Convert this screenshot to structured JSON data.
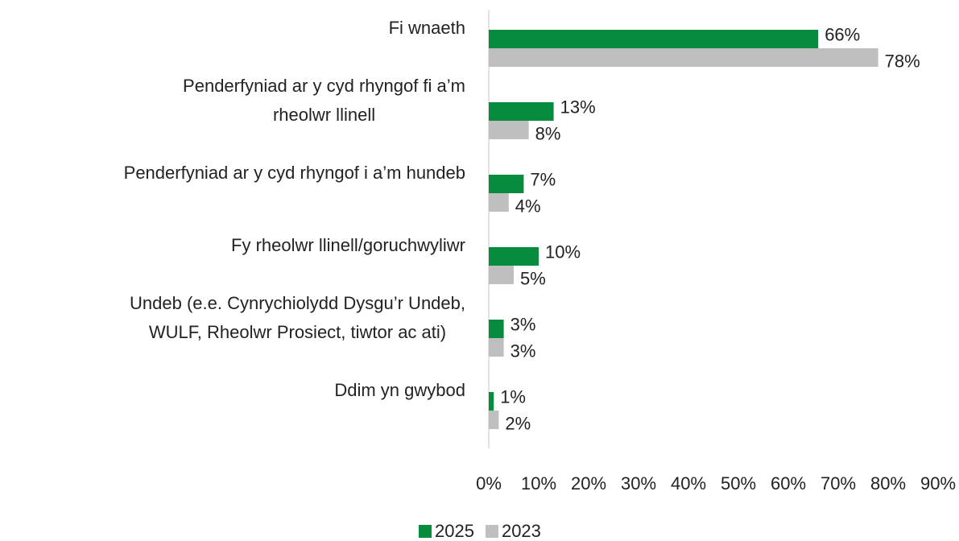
{
  "chart_data": {
    "type": "bar",
    "orientation": "horizontal",
    "categories": [
      "Fi wnaeth",
      "Penderfyniad ar y cyd rhyngof fi a’m\nrheolwr llinell",
      "Penderfyniad ar y cyd rhyngof i a’m hundeb",
      "Fy rheolwr llinell/goruchwyliwr",
      "Undeb (e.e. Cynrychiolydd Dysgu’r Undeb,\nWULF, Rheolwr Prosiect, tiwtor ac ati)",
      "Ddim yn gwybod"
    ],
    "series": [
      {
        "name": "2025",
        "color": "#078b3c",
        "values": [
          66,
          13,
          7,
          10,
          3,
          1
        ],
        "value_labels": [
          "66%",
          "13%",
          "7%",
          "10%",
          "3%",
          "1%"
        ]
      },
      {
        "name": "2023",
        "color": "#bfbfbf",
        "values": [
          78,
          8,
          4,
          5,
          3,
          2
        ],
        "value_labels": [
          "78%",
          "8%",
          "4%",
          "5%",
          "3%",
          "2%"
        ]
      }
    ],
    "xlim": [
      0,
      90
    ],
    "xticks": [
      {
        "value": 0,
        "label": "0%"
      },
      {
        "value": 10,
        "label": "10%"
      },
      {
        "value": 20,
        "label": "20%"
      },
      {
        "value": 30,
        "label": "30%"
      },
      {
        "value": 40,
        "label": "40%"
      },
      {
        "value": 50,
        "label": "50%"
      },
      {
        "value": 60,
        "label": "60%"
      },
      {
        "value": 70,
        "label": "70%"
      },
      {
        "value": 80,
        "label": "80%"
      },
      {
        "value": 90,
        "label": "90%"
      }
    ],
    "grid": false,
    "legend": "bottom"
  }
}
